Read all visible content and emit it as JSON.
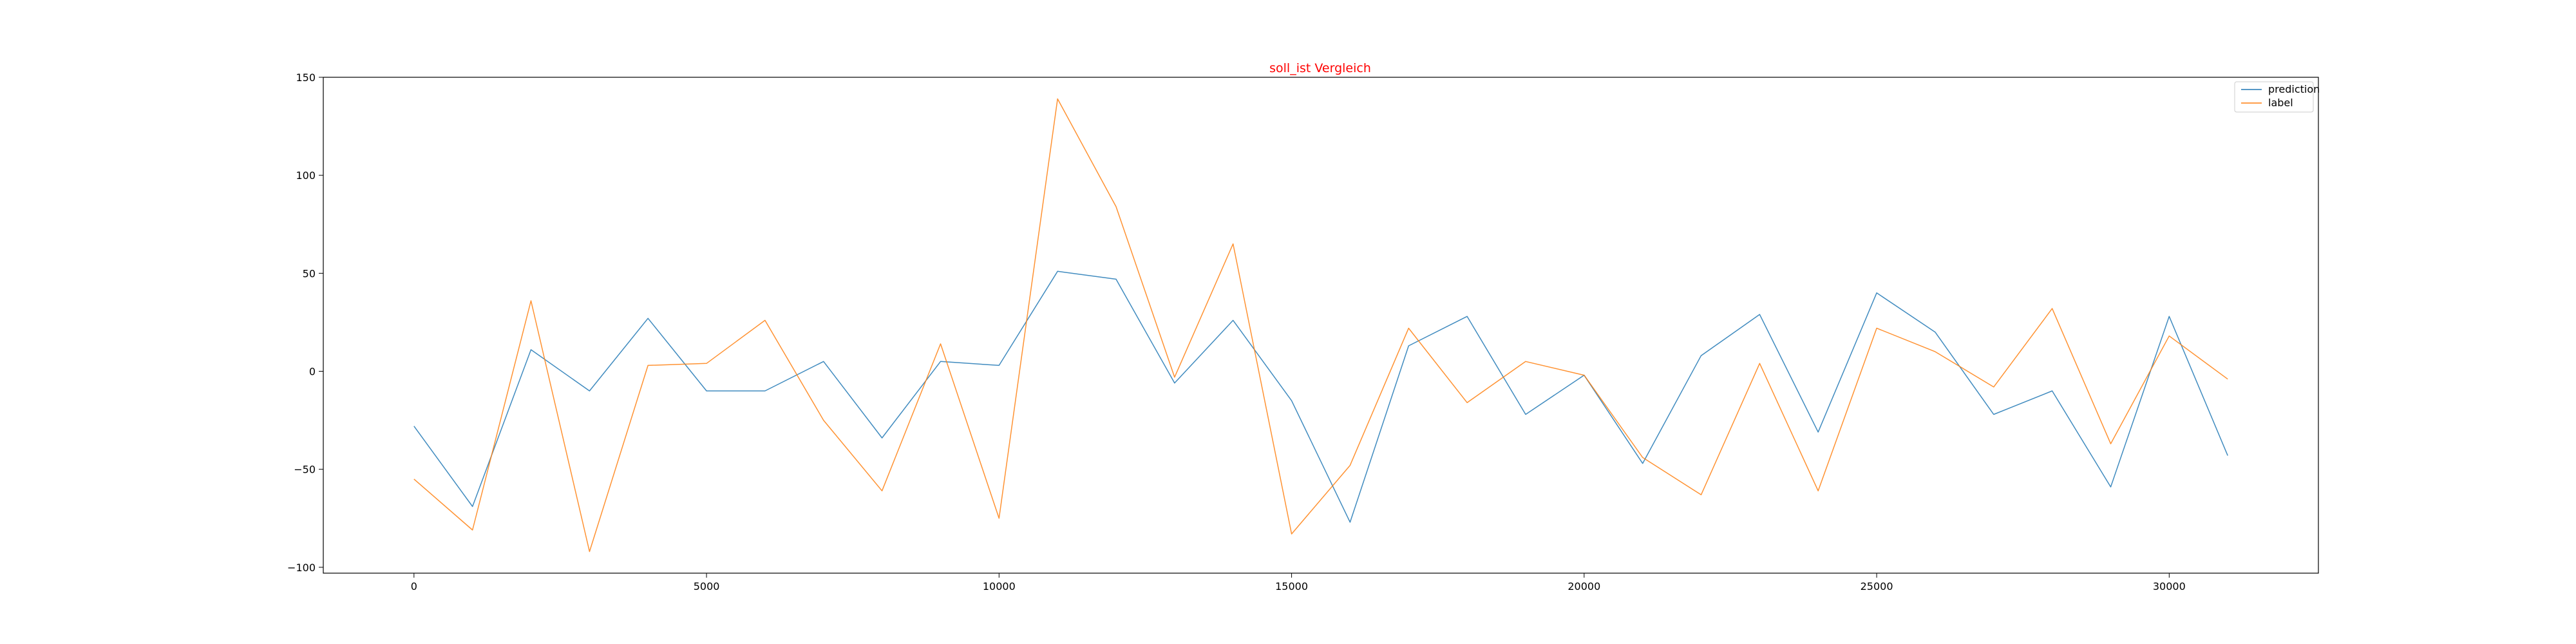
{
  "chart_data": {
    "type": "line",
    "title": "soll_ist Vergleich",
    "xlabel": "",
    "ylabel": "",
    "xlim": [
      -1550,
      32550
    ],
    "ylim": [
      -103,
      150
    ],
    "xticks": [
      0,
      5000,
      10000,
      15000,
      20000,
      25000,
      30000
    ],
    "yticks": [
      -100,
      -50,
      0,
      50,
      100,
      150
    ],
    "grid": false,
    "legend_position": "top-right",
    "x": [
      0,
      1000,
      2000,
      3000,
      4000,
      5000,
      6000,
      7000,
      8000,
      9000,
      10000,
      11000,
      12000,
      13000,
      14000,
      15000,
      16000,
      17000,
      18000,
      19000,
      20000,
      21000,
      22000,
      23000,
      24000,
      25000,
      26000,
      27000,
      28000,
      29000,
      30000,
      31000
    ],
    "series": [
      {
        "name": "prediction",
        "color": "#1f77b4",
        "values": [
          -28,
          -69,
          11,
          -10,
          27,
          -10,
          -10,
          5,
          -34,
          5,
          3,
          51,
          47,
          -6,
          26,
          -15,
          -77,
          13,
          28,
          -22,
          -2,
          -47,
          8,
          29,
          -31,
          40,
          20,
          -22,
          -10,
          -59,
          28,
          -43
        ]
      },
      {
        "name": "label",
        "color": "#ff7f0e",
        "values": [
          -55,
          -81,
          36,
          -92,
          3,
          4,
          26,
          -25,
          -61,
          14,
          -75,
          139,
          84,
          -3,
          65,
          -83,
          -48,
          22,
          -16,
          5,
          -2,
          -44,
          -63,
          4,
          -61,
          22,
          10,
          -8,
          32,
          -37,
          18,
          -4
        ]
      }
    ]
  }
}
